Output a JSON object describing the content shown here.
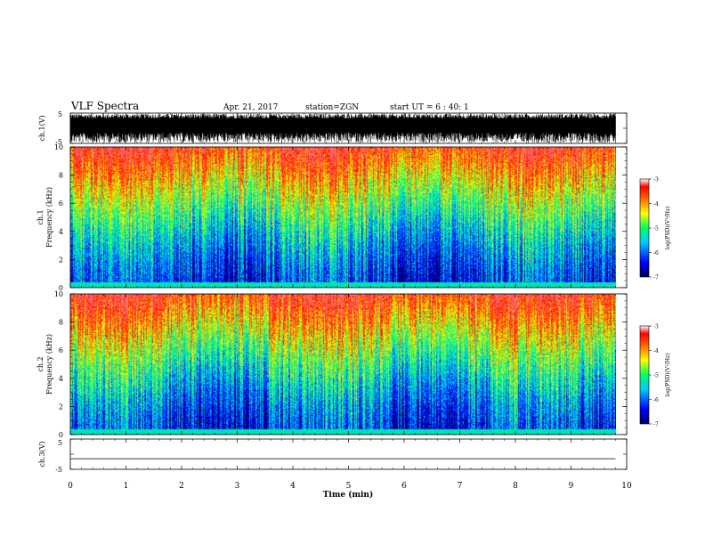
{
  "header": {
    "title": "VLF Spectra",
    "date": "Apr. 21, 2017",
    "station": "station=ZGN",
    "start": "start UT = 6 : 40: 1"
  },
  "chart_data": [
    {
      "type": "line",
      "panel": "ch1-waveform",
      "ylabel": "ch.1(V)",
      "ylim": [
        -5,
        5
      ],
      "yticks": [
        "5",
        "-5"
      ]
    },
    {
      "type": "heatmap",
      "panel": "ch1-spectrogram",
      "ylabel_line1": "ch.1",
      "ylabel_line2": "Frequency (kHz)",
      "ylim": [
        0,
        10
      ],
      "yticks": [
        "0",
        "2",
        "4",
        "6",
        "8",
        "10"
      ],
      "colorbar": {
        "label": "log(PSD)(V²/Hz)",
        "range": [
          -7,
          -3
        ],
        "ticks": [
          "-3",
          "-4",
          "-5",
          "-6",
          "-7"
        ]
      }
    },
    {
      "type": "heatmap",
      "panel": "ch2-spectrogram",
      "ylabel_line1": "ch.2",
      "ylabel_line2": "Frequency (kHz)",
      "ylim": [
        0,
        10
      ],
      "yticks": [
        "0",
        "2",
        "4",
        "6",
        "8",
        "10"
      ],
      "colorbar": {
        "label": "log(PSD)(V²/Hz)",
        "range": [
          -7,
          -3
        ],
        "ticks": [
          "-3",
          "-4",
          "-5",
          "-6",
          "-7"
        ]
      }
    },
    {
      "type": "line",
      "panel": "ch3-waveform",
      "ylabel": "ch.3(V)",
      "ylim": [
        -5,
        5
      ],
      "yticks": [
        "5",
        "-5"
      ],
      "values_constant": -1.5
    }
  ],
  "xaxis": {
    "label": "Time (min)",
    "xlim": [
      0,
      10
    ],
    "ticks": [
      "0",
      "1",
      "2",
      "3",
      "4",
      "5",
      "6",
      "7",
      "8",
      "9",
      "10"
    ],
    "data_end": 9.8
  },
  "colors": {
    "scale": [
      "#00008b",
      "#0000ff",
      "#00c8ff",
      "#00ff64",
      "#ffff00",
      "#ff8c00",
      "#ff0000",
      "#ff6a6a"
    ],
    "trace": "#000000"
  }
}
